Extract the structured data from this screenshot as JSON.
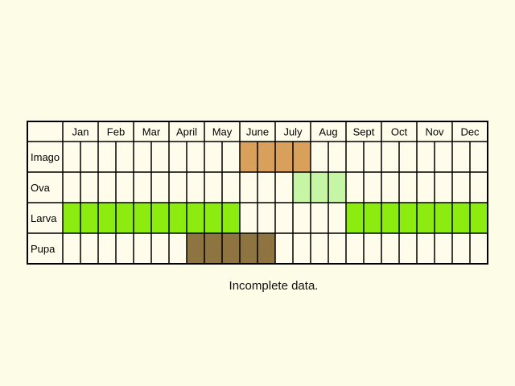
{
  "months": [
    "Jan",
    "Feb",
    "Mar",
    "April",
    "May",
    "June",
    "July",
    "Aug",
    "Sept",
    "Oct",
    "Nov",
    "Dec"
  ],
  "stages": [
    {
      "label": "Imago",
      "color": "#d9a05b",
      "periods": [
        {
          "start_month": 6,
          "start_half": 1,
          "end_month": 7,
          "end_half": 2
        }
      ]
    },
    {
      "label": "Ova",
      "color": "#c6f5a6",
      "periods": [
        {
          "start_month": 7,
          "start_half": 2,
          "end_month": 8,
          "end_half": 2
        }
      ]
    },
    {
      "label": "Larva",
      "color": "#8cec10",
      "periods": [
        {
          "start_month": 1,
          "start_half": 1,
          "end_month": 5,
          "end_half": 2
        },
        {
          "start_month": 9,
          "start_half": 1,
          "end_month": 12,
          "end_half": 2
        }
      ]
    },
    {
      "label": "Pupa",
      "color": "#8e7440",
      "periods": [
        {
          "start_month": 4,
          "start_half": 2,
          "end_month": 6,
          "end_half": 2
        }
      ]
    }
  ],
  "caption": "Incomplete data."
}
